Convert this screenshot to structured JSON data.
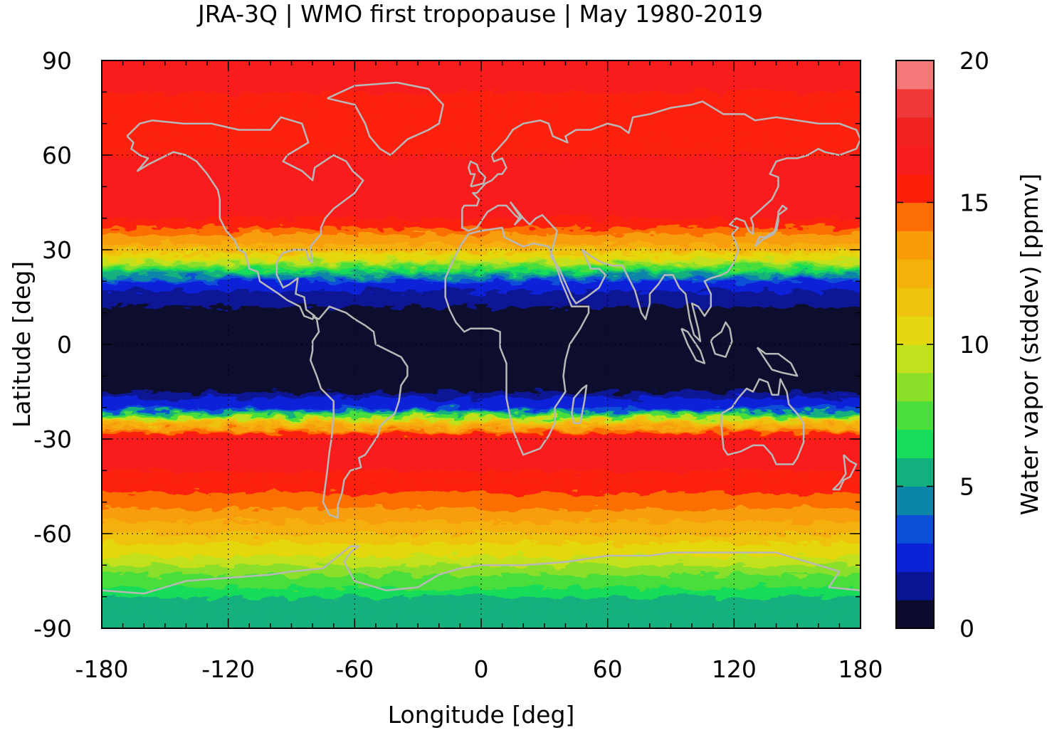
{
  "chart_data": {
    "type": "heatmap",
    "title": "JRA-3Q | WMO first tropopause | May 1980-2019",
    "xlabel": "Longitude [deg]",
    "ylabel": "Latitude [deg]",
    "colorbar_label": "Water vapor (stddev) [ppmv]",
    "xlim": [
      -180,
      180
    ],
    "ylim": [
      -90,
      90
    ],
    "xticks": [
      -180,
      -120,
      -60,
      0,
      60,
      120,
      180
    ],
    "yticks": [
      90,
      60,
      30,
      0,
      -30,
      -60,
      -90
    ],
    "grid": true,
    "colorbar": {
      "range": [
        0,
        20
      ],
      "ticks": [
        0,
        5,
        10,
        15,
        20
      ],
      "levels": [
        0,
        1,
        2,
        3,
        4,
        5,
        6,
        7,
        8,
        9,
        10,
        11,
        12,
        13,
        14,
        15,
        16,
        17,
        18,
        19,
        20
      ],
      "colors": [
        "#0d0b2d",
        "#0a1595",
        "#0b22d8",
        "#0b4fd6",
        "#0b85a8",
        "#12b07e",
        "#19dc5a",
        "#4ade3a",
        "#8adf2a",
        "#c2e11c",
        "#e4d810",
        "#efc20e",
        "#f5b00b",
        "#f89d08",
        "#fb6e06",
        "#fd2008",
        "#f81d1d",
        "#f02222",
        "#ef3838",
        "#f47878",
        "#fdd0d0"
      ]
    },
    "values_by_latitude": {
      "lat": [
        -90,
        -80,
        -70,
        -60,
        -50,
        -40,
        -30,
        -25,
        -20,
        -15,
        -10,
        0,
        10,
        15,
        20,
        25,
        30,
        40,
        50,
        60,
        70,
        80,
        90
      ],
      "stddev_ppmv": [
        5,
        6,
        9,
        12,
        14.5,
        16,
        17,
        12,
        3,
        1,
        0.5,
        0.5,
        0.5,
        1.5,
        3,
        8,
        12,
        16,
        17,
        16,
        15.5,
        16,
        16
      ]
    }
  }
}
